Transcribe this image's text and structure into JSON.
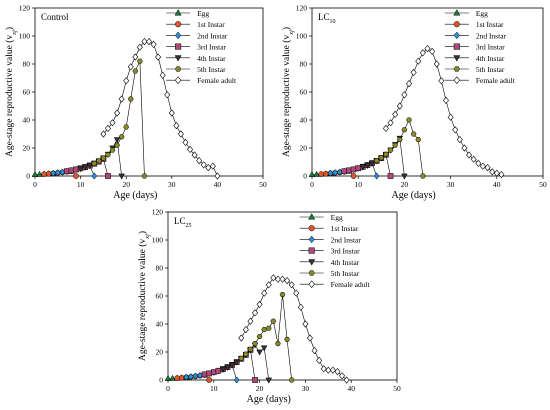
{
  "chart_data": [
    {
      "type": "line",
      "panel_label": "Control",
      "xlabel": "Age (days)",
      "ylabel": "Age-stage reproductive value (v",
      "ylabel_sub": "xj",
      "ylabel_close": ")",
      "xlim": [
        0,
        50
      ],
      "ylim": [
        0,
        120
      ],
      "xticks": [
        0,
        10,
        20,
        30,
        40,
        50
      ],
      "yticks": [
        0,
        20,
        40,
        60,
        80,
        100,
        120
      ],
      "legend_position": "top-right",
      "series": [
        {
          "name": "Egg",
          "marker": "triangle-up",
          "color": "#1a7a3a",
          "x": [
            0,
            1,
            2,
            3,
            4
          ],
          "y": [
            1.0,
            1.1,
            1.3,
            1.5,
            1.7
          ]
        },
        {
          "name": "1st Instar",
          "marker": "circle",
          "color": "#e0552a",
          "x": [
            2,
            3,
            4,
            5,
            6,
            7,
            8,
            9
          ],
          "y": [
            1.3,
            1.6,
            1.9,
            2.2,
            2.6,
            3.1,
            3.5,
            0
          ]
        },
        {
          "name": "2nd Instar",
          "marker": "diamond",
          "color": "#2a8fd6",
          "x": [
            4,
            5,
            6,
            7,
            8,
            9,
            10,
            11,
            12,
            13
          ],
          "y": [
            2.0,
            2.4,
            2.8,
            3.3,
            3.9,
            4.6,
            5.3,
            6.2,
            7.3,
            0
          ]
        },
        {
          "name": "3rd Instar",
          "marker": "square",
          "color": "#b0487a",
          "x": [
            7,
            8,
            9,
            10,
            11,
            12,
            13,
            14,
            15,
            16
          ],
          "y": [
            3.4,
            4.0,
            4.7,
            5.5,
            6.4,
            7.5,
            8.8,
            10.3,
            12.2,
            0
          ]
        },
        {
          "name": "4th Instar",
          "marker": "triangle-down",
          "color": "#333333",
          "x": [
            10,
            11,
            12,
            13,
            14,
            15,
            16,
            17,
            18,
            19
          ],
          "y": [
            5.6,
            6.6,
            7.8,
            9.2,
            10.9,
            13.0,
            15.6,
            20,
            26,
            0
          ]
        },
        {
          "name": "5th Instar",
          "marker": "hexagon",
          "color": "#8a8a2a",
          "x": [
            13,
            14,
            15,
            16,
            17,
            18,
            19,
            20,
            21,
            22,
            23,
            24
          ],
          "y": [
            9.0,
            10.8,
            12.8,
            15.2,
            18.5,
            22,
            28,
            35,
            55,
            75,
            82,
            0
          ]
        },
        {
          "name": "Female adult",
          "marker": "diamond-open",
          "color": "#ffffff",
          "x": [
            15,
            16,
            17,
            18,
            19,
            20,
            21,
            22,
            23,
            24,
            25,
            26,
            27,
            28,
            29,
            30,
            31,
            32,
            33,
            34,
            35,
            36,
            37,
            38,
            39,
            40
          ],
          "y": [
            30,
            34,
            38,
            45,
            55,
            68,
            78,
            85,
            92,
            96,
            96,
            94,
            85,
            72,
            58,
            45,
            36,
            30,
            24,
            19,
            15,
            11,
            8,
            6,
            7,
            0
          ]
        }
      ]
    },
    {
      "type": "line",
      "panel_label": "LC",
      "panel_label_sub": "10",
      "xlabel": "Age (days)",
      "ylabel": "Age-stage reproductive value (v",
      "ylabel_sub": "xj",
      "ylabel_close": ")",
      "xlim": [
        0,
        50
      ],
      "ylim": [
        0,
        120
      ],
      "xticks": [
        0,
        10,
        20,
        30,
        40,
        50
      ],
      "yticks": [
        0,
        20,
        40,
        60,
        80,
        100,
        120
      ],
      "legend_position": "top-right",
      "series": [
        {
          "name": "Egg",
          "marker": "triangle-up",
          "color": "#1a7a3a",
          "x": [
            0,
            1,
            2,
            3,
            4
          ],
          "y": [
            1.0,
            1.1,
            1.3,
            1.5,
            1.7
          ]
        },
        {
          "name": "1st Instar",
          "marker": "circle",
          "color": "#e0552a",
          "x": [
            2,
            3,
            4,
            5,
            6,
            7,
            8,
            9
          ],
          "y": [
            1.3,
            1.6,
            1.9,
            2.2,
            2.6,
            3.1,
            3.6,
            0
          ]
        },
        {
          "name": "2nd Instar",
          "marker": "diamond",
          "color": "#2a8fd6",
          "x": [
            4,
            5,
            6,
            7,
            8,
            9,
            10,
            11,
            12,
            13,
            14
          ],
          "y": [
            2.0,
            2.4,
            2.8,
            3.3,
            3.9,
            4.6,
            5.4,
            6.4,
            7.6,
            9.0,
            0
          ]
        },
        {
          "name": "3rd Instar",
          "marker": "square",
          "color": "#b0487a",
          "x": [
            7,
            8,
            9,
            10,
            11,
            12,
            13,
            14,
            15,
            16,
            17
          ],
          "y": [
            3.4,
            4.0,
            4.7,
            5.6,
            6.6,
            7.8,
            9.2,
            10.8,
            12.8,
            15.2,
            0
          ]
        },
        {
          "name": "4th Instar",
          "marker": "triangle-down",
          "color": "#333333",
          "x": [
            11,
            12,
            13,
            14,
            15,
            16,
            17,
            18,
            19,
            20
          ],
          "y": [
            6.6,
            7.8,
            9.2,
            10.8,
            12.8,
            15.4,
            18.6,
            22.5,
            27,
            0
          ]
        },
        {
          "name": "5th Instar",
          "marker": "hexagon",
          "color": "#8a8a2a",
          "x": [
            14,
            15,
            16,
            17,
            18,
            19,
            20,
            21,
            22,
            23,
            24
          ],
          "y": [
            11,
            13,
            15.5,
            18.5,
            22,
            26,
            33,
            40,
            30,
            26,
            0
          ]
        },
        {
          "name": "Female adult",
          "marker": "diamond-open",
          "color": "#ffffff",
          "x": [
            16,
            17,
            18,
            19,
            20,
            21,
            22,
            23,
            24,
            25,
            26,
            27,
            28,
            29,
            30,
            31,
            32,
            33,
            34,
            35,
            36,
            37,
            38,
            39,
            40,
            41
          ],
          "y": [
            34,
            38,
            44,
            50,
            58,
            66,
            74,
            82,
            88,
            91,
            89,
            80,
            68,
            54,
            42,
            33,
            26,
            20,
            15,
            12,
            9,
            7,
            6,
            3,
            2,
            1
          ]
        }
      ]
    },
    {
      "type": "line",
      "panel_label": "LC",
      "panel_label_sub": "25",
      "xlabel": "Age (days)",
      "ylabel": "Age-stage reproductive value (v",
      "ylabel_sub": "xj",
      "ylabel_close": ")",
      "xlim": [
        0,
        50
      ],
      "ylim": [
        0,
        120
      ],
      "xticks": [
        0,
        10,
        20,
        30,
        40,
        50
      ],
      "yticks": [
        0,
        20,
        40,
        60,
        80,
        100,
        120
      ],
      "legend_position": "top-right",
      "series": [
        {
          "name": "Egg",
          "marker": "triangle-up",
          "color": "#1a7a3a",
          "x": [
            0,
            1,
            2,
            3,
            4
          ],
          "y": [
            1.0,
            1.1,
            1.3,
            1.5,
            1.7
          ]
        },
        {
          "name": "1st Instar",
          "marker": "circle",
          "color": "#e0552a",
          "x": [
            2,
            3,
            4,
            5,
            6,
            7,
            8,
            9
          ],
          "y": [
            1.3,
            1.6,
            1.9,
            2.2,
            2.6,
            3.1,
            3.6,
            0
          ]
        },
        {
          "name": "2nd Instar",
          "marker": "diamond",
          "color": "#2a8fd6",
          "x": [
            4,
            5,
            6,
            7,
            8,
            9,
            10,
            11,
            12,
            13,
            14,
            15
          ],
          "y": [
            2.0,
            2.4,
            2.8,
            3.3,
            3.9,
            4.6,
            5.4,
            6.4,
            7.6,
            9.0,
            10.6,
            0
          ]
        },
        {
          "name": "3rd Instar",
          "marker": "square",
          "color": "#b0487a",
          "x": [
            8,
            9,
            10,
            11,
            12,
            13,
            14,
            15,
            16,
            17,
            18,
            19
          ],
          "y": [
            4.0,
            4.7,
            5.6,
            6.6,
            7.8,
            9.2,
            10.8,
            12.8,
            15.2,
            18,
            21.5,
            0
          ]
        },
        {
          "name": "4th Instar",
          "marker": "triangle-down",
          "color": "#333333",
          "x": [
            12,
            13,
            14,
            15,
            16,
            17,
            18,
            19,
            20,
            21,
            22
          ],
          "y": [
            7.8,
            9.2,
            10.8,
            12.8,
            15.2,
            18,
            21.5,
            25,
            20,
            23,
            0
          ]
        },
        {
          "name": "5th Instar",
          "marker": "hexagon",
          "color": "#8a8a2a",
          "x": [
            16,
            17,
            18,
            19,
            20,
            21,
            22,
            23,
            24,
            25,
            26,
            27
          ],
          "y": [
            15.5,
            18.5,
            22,
            26,
            31,
            36,
            37,
            42,
            26,
            61,
            29,
            0
          ]
        },
        {
          "name": "Female adult",
          "marker": "diamond-open",
          "color": "#ffffff",
          "x": [
            16,
            17,
            18,
            19,
            20,
            21,
            22,
            23,
            24,
            25,
            26,
            27,
            28,
            29,
            30,
            31,
            32,
            33,
            34,
            35,
            36,
            37,
            38,
            39
          ],
          "y": [
            30,
            36,
            42,
            48,
            54,
            62,
            68,
            73,
            72,
            72,
            71,
            68,
            62,
            52,
            40,
            30,
            21,
            14,
            8,
            7,
            7,
            6,
            3,
            0
          ]
        }
      ]
    }
  ]
}
